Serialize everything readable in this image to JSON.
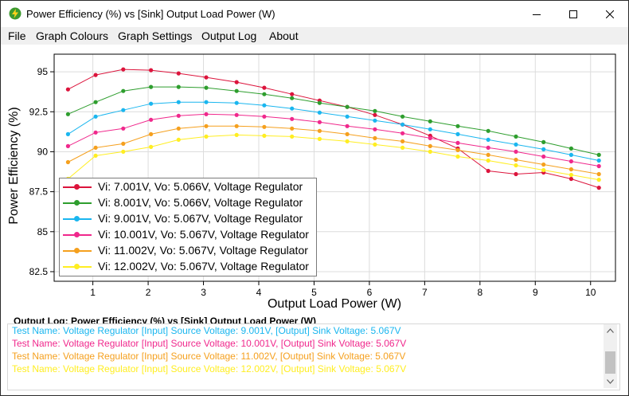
{
  "window": {
    "title": "Power Efficiency (%) vs [Sink] Output Load Power (W)",
    "icon": "lightning-bolt-icon"
  },
  "menu": {
    "items": [
      "File",
      "Graph Colours",
      "Graph Settings",
      "Output Log",
      "About"
    ]
  },
  "chart_data": {
    "type": "line",
    "xlabel": "Output Load Power (W)",
    "ylabel": "Power Efficiency (%)",
    "xlim": [
      0.3,
      10.45
    ],
    "ylim": [
      81.9,
      96.1
    ],
    "x_ticks": [
      1,
      2,
      3,
      4,
      5,
      6,
      7,
      8,
      9,
      10
    ],
    "y_ticks": [
      82.5,
      85,
      87.5,
      90,
      92.5,
      95
    ],
    "y_tick_labels": [
      "82.5",
      "85",
      "87.5",
      "90",
      "92.5",
      "95"
    ],
    "grid": true,
    "legend_position": "bottom-left",
    "x": [
      0.55,
      1.05,
      1.55,
      2.05,
      2.55,
      3.05,
      3.6,
      4.1,
      4.6,
      5.1,
      5.6,
      6.1,
      6.6,
      7.1,
      7.6,
      8.15,
      8.65,
      9.15,
      9.65,
      10.15
    ],
    "series": [
      {
        "name": "Vi: 7.001V, Vo: 5.066V, Voltage Regulator",
        "color": "#dc143c",
        "values": [
          93.9,
          94.8,
          95.15,
          95.1,
          94.9,
          94.65,
          94.35,
          94.0,
          93.6,
          93.2,
          92.8,
          92.3,
          91.7,
          91.0,
          90.2,
          88.8,
          88.6,
          88.7,
          88.3,
          87.75
        ]
      },
      {
        "name": "Vi: 8.001V, Vo: 5.066V, Voltage Regulator",
        "color": "#2e9e2e",
        "values": [
          92.35,
          93.1,
          93.8,
          94.05,
          94.05,
          94.0,
          93.8,
          93.6,
          93.35,
          93.05,
          92.8,
          92.55,
          92.2,
          91.9,
          91.6,
          91.3,
          90.95,
          90.6,
          90.2,
          89.8
        ]
      },
      {
        "name": "Vi: 9.001V, Vo: 5.067V, Voltage Regulator",
        "color": "#1ab6ef",
        "values": [
          91.1,
          92.2,
          92.6,
          93.0,
          93.1,
          93.1,
          93.05,
          92.9,
          92.7,
          92.45,
          92.2,
          91.95,
          91.7,
          91.4,
          91.1,
          90.75,
          90.45,
          90.15,
          89.8,
          89.45
        ]
      },
      {
        "name": "Vi: 10.001V, Vo: 5.067V, Voltage Regulator",
        "color": "#f0288c",
        "values": [
          90.35,
          91.2,
          91.45,
          92.0,
          92.25,
          92.35,
          92.3,
          92.2,
          92.05,
          91.85,
          91.6,
          91.4,
          91.15,
          90.85,
          90.55,
          90.25,
          90.0,
          89.7,
          89.4,
          89.1
        ]
      },
      {
        "name": "Vi: 11.002V, Vo: 5.067V, Voltage Regulator",
        "color": "#f5a01e",
        "values": [
          89.35,
          90.25,
          90.5,
          91.1,
          91.45,
          91.6,
          91.6,
          91.55,
          91.45,
          91.3,
          91.1,
          90.85,
          90.65,
          90.35,
          90.1,
          89.8,
          89.5,
          89.2,
          88.9,
          88.6
        ]
      },
      {
        "name": "Vi: 12.002V, Vo: 5.067V, Voltage Regulator",
        "color": "#ffee22",
        "values": [
          88.3,
          89.75,
          90.0,
          90.3,
          90.75,
          90.95,
          91.05,
          91.0,
          90.95,
          90.8,
          90.65,
          90.45,
          90.25,
          90.0,
          89.7,
          89.45,
          89.15,
          88.85,
          88.55,
          88.25
        ]
      }
    ]
  },
  "log": {
    "title": "Output Log: Power Efficiency (%) vs [Sink] Output Load Power (W)",
    "lines": [
      {
        "text": "Test Name: Voltage Regulator [Input] Source Voltage: 9.001V, [Output] Sink Voltage: 5.067V",
        "color": "#1ab6ef"
      },
      {
        "text": "Test Name: Voltage Regulator [Input] Source Voltage: 10.001V, [Output] Sink Voltage: 5.067V",
        "color": "#f0288c"
      },
      {
        "text": "Test Name: Voltage Regulator [Input] Source Voltage: 11.002V, [Output] Sink Voltage: 5.067V",
        "color": "#f5a01e"
      },
      {
        "text": "Test Name: Voltage Regulator [Input] Source Voltage: 12.002V, [Output] Sink Voltage: 5.067V",
        "color": "#ffee22"
      }
    ]
  }
}
